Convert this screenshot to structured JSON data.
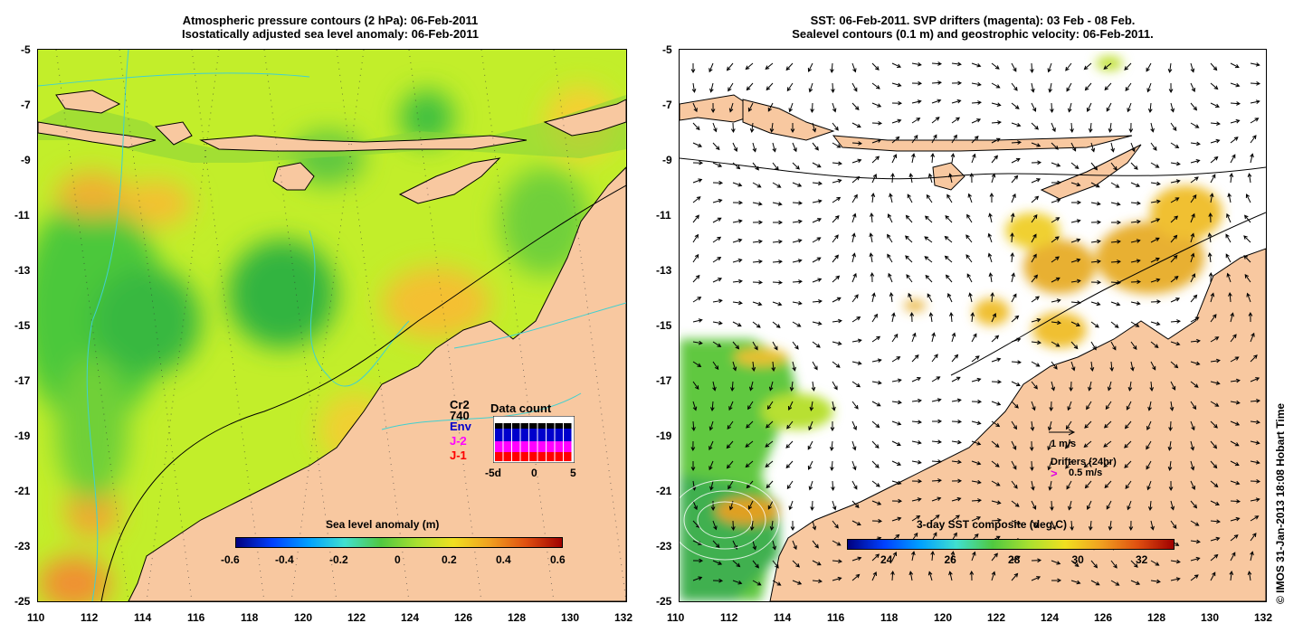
{
  "left_panel": {
    "title_line1": "Atmospheric pressure contours (2 hPa): 06-Feb-2011",
    "title_line2": "Isostatically adjusted sea level anomaly: 06-Feb-2011",
    "colorbar_title": "Sea level anomaly (m)",
    "colorbar_ticks": [
      "-0.6",
      "-0.4",
      "-0.2",
      "0",
      "0.2",
      "0.4",
      "0.6"
    ],
    "legend_labels": [
      "Cr2",
      "740",
      "Env",
      "J-2",
      "J-1"
    ],
    "legend_colors": [
      "#000000",
      "#000000",
      "#0000cc",
      "#ff00ff",
      "#ff0000"
    ],
    "data_count_title": "Data count",
    "data_count_ticks": [
      "-5d",
      "0",
      "5"
    ]
  },
  "right_panel": {
    "title_line1": "SST: 06-Feb-2011. SVP drifters (magenta): 03 Feb - 08 Feb.",
    "title_line2": "Sealevel contours (0.1 m) and geostrophic velocity: 06-Feb-2011.",
    "colorbar_title": "3-day SST composite (deg C)",
    "colorbar_ticks": [
      "24",
      "26",
      "28",
      "30",
      "32"
    ],
    "velocity_scale_label": "1 m/s",
    "drifters_label": "Drifters (24hr)",
    "drifter_scale_symbol": ">",
    "drifter_scale_label": "0.5 m/s"
  },
  "axes": {
    "lat_ticks": [
      "-5",
      "-7",
      "-9",
      "-11",
      "-13",
      "-15",
      "-17",
      "-19",
      "-21",
      "-23",
      "-25"
    ],
    "lon_ticks": [
      "110",
      "112",
      "114",
      "116",
      "118",
      "120",
      "122",
      "124",
      "126",
      "128",
      "130",
      "132"
    ]
  },
  "credit": "© IMOS 31-Jan-2013 18:08 Hobart Time",
  "colors": {
    "land": "#f8c8a0",
    "sea_level_mid": "#a8e830",
    "ocean_white": "#ffffff",
    "contour_cyan": "#40d0d0"
  }
}
